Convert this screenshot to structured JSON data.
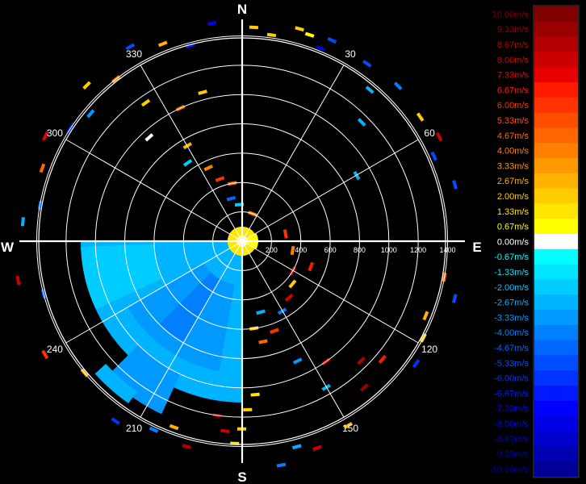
{
  "chart_data": {
    "type": "polar-heatmap",
    "title": "",
    "compass": {
      "north": "N",
      "east": "E",
      "south": "S",
      "west": "W"
    },
    "azimuth_ticks": [
      "30",
      "60",
      "120",
      "150",
      "210",
      "240",
      "300",
      "330"
    ],
    "range_ticks": [
      "200",
      "400",
      "600",
      "800",
      "1000",
      "1200",
      "1400"
    ],
    "range_max": 1400,
    "grid": true,
    "legend_position": "right",
    "colorscale": [
      {
        "label": "10.00m/s",
        "value": 10.0,
        "color": "#800000"
      },
      {
        "label": "9.33m/s",
        "value": 9.33,
        "color": "#990000"
      },
      {
        "label": "8.67m/s",
        "value": 8.67,
        "color": "#b20000"
      },
      {
        "label": "8.00m/s",
        "value": 8.0,
        "color": "#cc0000"
      },
      {
        "label": "7.33m/s",
        "value": 7.33,
        "color": "#e60000"
      },
      {
        "label": "6.67m/s",
        "value": 6.67,
        "color": "#ff1a00"
      },
      {
        "label": "6.00m/s",
        "value": 6.0,
        "color": "#ff3300"
      },
      {
        "label": "5.33m/s",
        "value": 5.33,
        "color": "#ff4d00"
      },
      {
        "label": "4.67m/s",
        "value": 4.67,
        "color": "#ff6600"
      },
      {
        "label": "4.00m/s",
        "value": 4.0,
        "color": "#ff8000"
      },
      {
        "label": "3.33m/s",
        "value": 3.33,
        "color": "#ff9900"
      },
      {
        "label": "2.67m/s",
        "value": 2.67,
        "color": "#ffb300"
      },
      {
        "label": "2.00m/s",
        "value": 2.0,
        "color": "#ffcc00"
      },
      {
        "label": "1.33m/s",
        "value": 1.33,
        "color": "#ffe600"
      },
      {
        "label": "0.67m/s",
        "value": 0.67,
        "color": "#ffff00"
      },
      {
        "label": "0.00m/s",
        "value": 0.0,
        "color": "#ffffff"
      },
      {
        "label": "-0.67m/s",
        "value": -0.67,
        "color": "#00ffff"
      },
      {
        "label": "-1.33m/s",
        "value": -1.33,
        "color": "#00e6ff"
      },
      {
        "label": "-2.00m/s",
        "value": -2.0,
        "color": "#00ccff"
      },
      {
        "label": "-2.67m/s",
        "value": -2.67,
        "color": "#00b3ff"
      },
      {
        "label": "-3.33m/s",
        "value": -3.33,
        "color": "#0099ff"
      },
      {
        "label": "-4.00m/s",
        "value": -4.0,
        "color": "#0080ff"
      },
      {
        "label": "-4.67m/s",
        "value": -4.67,
        "color": "#0066ff"
      },
      {
        "label": "-5.33m/s",
        "value": -5.33,
        "color": "#004dff"
      },
      {
        "label": "-6.00m/s",
        "value": -6.0,
        "color": "#0033ff"
      },
      {
        "label": "-6.67m/s",
        "value": -6.67,
        "color": "#001aff"
      },
      {
        "label": "-7.33m/s",
        "value": -7.33,
        "color": "#0000ff"
      },
      {
        "label": "-8.00m/s",
        "value": -8.0,
        "color": "#0000e6"
      },
      {
        "label": "-8.67m/s",
        "value": -8.67,
        "color": "#0000cc"
      },
      {
        "label": "-9.33m/s",
        "value": -9.33,
        "color": "#0000b3"
      },
      {
        "label": "-10.00m/s",
        "value": -10.0,
        "color": "#000099"
      }
    ],
    "sectors": [
      {
        "az0": 180,
        "az1": 270,
        "r0": 0,
        "r1": 1100,
        "value": -2.67
      },
      {
        "az0": 190,
        "az1": 240,
        "r0": 300,
        "r1": 900,
        "value": -3.33
      },
      {
        "az0": 205,
        "az1": 225,
        "r0": 1000,
        "r1": 1300,
        "value": -3.33
      },
      {
        "az0": 210,
        "az1": 225,
        "r0": 300,
        "r1": 800,
        "value": -4.0
      },
      {
        "az0": 215,
        "az1": 228,
        "r0": 1250,
        "r1": 1350,
        "value": -2.67
      },
      {
        "az0": 245,
        "az1": 268,
        "r0": 600,
        "r1": 1100,
        "value": -2.0
      },
      {
        "az0": 0,
        "az1": 360,
        "r0": 0,
        "r1": 100,
        "value": 1.33
      },
      {
        "az0": 60,
        "az1": 120,
        "r0": 0,
        "r1": 110,
        "value": 0.67
      }
    ],
    "cells": [
      {
        "az": 15,
        "r": 1500,
        "value": 2.0
      },
      {
        "az": 18,
        "r": 1480,
        "value": 0.67
      },
      {
        "az": 8,
        "r": 1420,
        "value": 2.0
      },
      {
        "az": 3,
        "r": 1460,
        "value": 2.0
      },
      {
        "az": 24,
        "r": 1500,
        "value": -5.33
      },
      {
        "az": 22,
        "r": 1420,
        "value": -8.67
      },
      {
        "az": 35,
        "r": 1480,
        "value": -5.33
      },
      {
        "az": 40,
        "r": 1350,
        "value": -2.67
      },
      {
        "az": 45,
        "r": 1500,
        "value": -4.0
      },
      {
        "az": 55,
        "r": 1480,
        "value": 2.0
      },
      {
        "az": 62,
        "r": 1520,
        "value": 8.0
      },
      {
        "az": 66,
        "r": 1430,
        "value": -5.33
      },
      {
        "az": 75,
        "r": 1500,
        "value": -5.33
      },
      {
        "az": 45,
        "r": 1150,
        "value": -2.67
      },
      {
        "az": 60,
        "r": 900,
        "value": -2.67
      },
      {
        "az": 100,
        "r": 1400,
        "value": 4.67
      },
      {
        "az": 105,
        "r": 1500,
        "value": -5.33
      },
      {
        "az": 112,
        "r": 1350,
        "value": 2.67
      },
      {
        "az": 118,
        "r": 1400,
        "value": 2.0
      },
      {
        "az": 125,
        "r": 1450,
        "value": -6.0
      },
      {
        "az": 130,
        "r": 1250,
        "value": 6.67
      },
      {
        "az": 135,
        "r": 1150,
        "value": 8.67
      },
      {
        "az": 140,
        "r": 1300,
        "value": 9.33
      },
      {
        "az": 150,
        "r": 1450,
        "value": 2.67
      },
      {
        "az": 160,
        "r": 1500,
        "value": 8.0
      },
      {
        "az": 145,
        "r": 1000,
        "value": 8.0
      },
      {
        "az": 150,
        "r": 1150,
        "value": -2.67
      },
      {
        "az": 155,
        "r": 900,
        "value": -3.33
      },
      {
        "az": 165,
        "r": 1450,
        "value": -2.67
      },
      {
        "az": 170,
        "r": 1550,
        "value": -4.0
      },
      {
        "az": 175,
        "r": 1050,
        "value": 1.33
      },
      {
        "az": 178,
        "r": 1150,
        "value": 2.0
      },
      {
        "az": 180,
        "r": 1280,
        "value": 2.0
      },
      {
        "az": 182,
        "r": 1380,
        "value": 1.33
      },
      {
        "az": 185,
        "r": 1300,
        "value": 8.0
      },
      {
        "az": 188,
        "r": 1200,
        "value": 8.67
      },
      {
        "az": 168,
        "r": 700,
        "value": 4.67
      },
      {
        "az": 172,
        "r": 600,
        "value": 2.0
      },
      {
        "az": 160,
        "r": 650,
        "value": 6.0
      },
      {
        "az": 150,
        "r": 550,
        "value": -4.0
      },
      {
        "az": 140,
        "r": 500,
        "value": 8.0
      },
      {
        "az": 165,
        "r": 500,
        "value": -2.67
      },
      {
        "az": 195,
        "r": 1450,
        "value": 8.67
      },
      {
        "az": 200,
        "r": 1350,
        "value": 2.67
      },
      {
        "az": 205,
        "r": 1420,
        "value": -4.0
      },
      {
        "az": 215,
        "r": 1500,
        "value": -6.0
      },
      {
        "az": 230,
        "r": 1400,
        "value": 2.67
      },
      {
        "az": 240,
        "r": 1550,
        "value": 6.0
      },
      {
        "az": 255,
        "r": 1400,
        "value": -5.33
      },
      {
        "az": 260,
        "r": 1550,
        "value": 8.0
      },
      {
        "az": 275,
        "r": 1500,
        "value": -2.67
      },
      {
        "az": 280,
        "r": 1400,
        "value": -5.33
      },
      {
        "az": 290,
        "r": 1450,
        "value": 4.67
      },
      {
        "az": 298,
        "r": 1520,
        "value": 7.33
      },
      {
        "az": 303,
        "r": 1400,
        "value": -6.67
      },
      {
        "az": 310,
        "r": 1350,
        "value": -3.33
      },
      {
        "az": 315,
        "r": 1500,
        "value": 2.0
      },
      {
        "az": 322,
        "r": 1400,
        "value": 4.0
      },
      {
        "az": 330,
        "r": 1530,
        "value": -5.33
      },
      {
        "az": 338,
        "r": 1450,
        "value": 2.67
      },
      {
        "az": 345,
        "r": 1380,
        "value": -6.67
      },
      {
        "az": 352,
        "r": 1500,
        "value": -7.33
      },
      {
        "az": 325,
        "r": 1150,
        "value": 2.0
      },
      {
        "az": 335,
        "r": 1000,
        "value": 4.67
      },
      {
        "az": 345,
        "r": 1050,
        "value": 2.0
      },
      {
        "az": 318,
        "r": 950,
        "value": 0.0
      },
      {
        "az": 325,
        "r": 650,
        "value": -2.0
      },
      {
        "az": 335,
        "r": 550,
        "value": 4.0
      },
      {
        "az": 340,
        "r": 450,
        "value": 6.0
      },
      {
        "az": 350,
        "r": 400,
        "value": 4.67
      },
      {
        "az": 330,
        "r": 750,
        "value": 2.67
      },
      {
        "az": 345,
        "r": 300,
        "value": -4.67
      },
      {
        "az": 355,
        "r": 250,
        "value": -2.0
      },
      {
        "az": 20,
        "r": 200,
        "value": 4.0
      },
      {
        "az": 80,
        "r": 300,
        "value": 6.0
      },
      {
        "az": 100,
        "r": 350,
        "value": 4.0
      },
      {
        "az": 120,
        "r": 400,
        "value": 8.0
      },
      {
        "az": 130,
        "r": 450,
        "value": 2.0
      },
      {
        "az": 110,
        "r": 500,
        "value": 6.67
      }
    ]
  }
}
